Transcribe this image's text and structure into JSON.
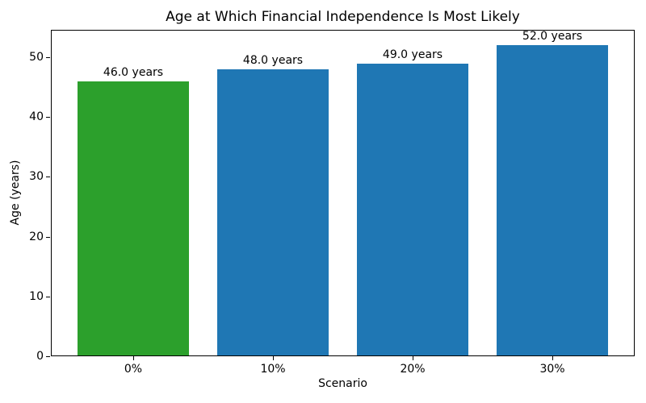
{
  "chart_data": {
    "type": "bar",
    "title": "Age at Which Financial Independence Is Most Likely",
    "xlabel": "Scenario",
    "ylabel": "Age (years)",
    "categories": [
      "0%",
      "10%",
      "20%",
      "30%"
    ],
    "values": [
      46.0,
      48.0,
      49.0,
      52.0
    ],
    "bar_labels": [
      "46.0 years",
      "48.0 years",
      "49.0 years",
      "52.0 years"
    ],
    "bar_colors": [
      "#2ca02c",
      "#1f77b4",
      "#1f77b4",
      "#1f77b4"
    ],
    "highlight_color": "#2ca02c",
    "default_color": "#1f77b4",
    "yticks": [
      0,
      10,
      20,
      30,
      40,
      50
    ],
    "ylim": [
      0,
      54.6
    ],
    "xlim": [
      -0.59,
      3.59
    ],
    "bar_width": 0.8,
    "grid": false,
    "legend_position": "none",
    "spine_color": "#000000",
    "text_color": "#000000",
    "background_color": "#ffffff"
  }
}
